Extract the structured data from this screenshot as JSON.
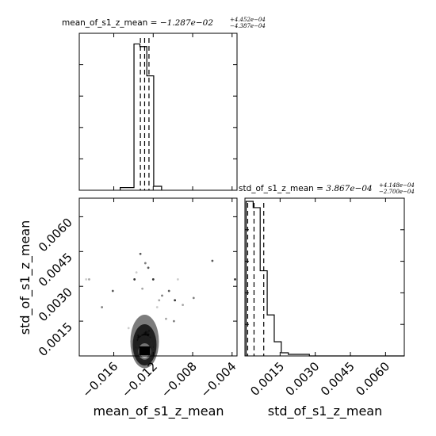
{
  "chart_data": [
    {
      "type": "histogram",
      "panel": "top-left",
      "parameter": "mean_of_s1_z_mean",
      "title_text": "mean_of_s1_z_mean = ",
      "title_value": "−1.287e−02",
      "title_plus": "+4.452e−04",
      "title_minus": "−4.387e−04",
      "xlim": [
        -0.0195,
        -0.0035
      ],
      "bins": [
        {
          "lo": -0.01535,
          "hi": -0.01395,
          "count": 2
        },
        {
          "lo": -0.01395,
          "hi": -0.01335,
          "count": 110
        },
        {
          "lo": -0.01335,
          "hi": -0.01265,
          "count": 108
        },
        {
          "lo": -0.01265,
          "hi": -0.01195,
          "count": 86
        },
        {
          "lo": -0.01195,
          "hi": -0.01115,
          "count": 3
        }
      ],
      "ymax": 118,
      "quantiles": [
        -0.0133,
        -0.01287,
        -0.01243
      ]
    },
    {
      "type": "scatter",
      "panel": "bottom-left",
      "xlabel": "mean_of_s1_z_mean",
      "ylabel": "std_of_s1_z_mean",
      "xlim": [
        -0.0195,
        -0.0035
      ],
      "ylim": [
        0.0,
        0.0068
      ],
      "xticks": [
        -0.016,
        -0.012,
        -0.008,
        -0.004
      ],
      "xtick_labels": [
        "−0.016",
        "−0.012",
        "−0.008",
        "−0.004"
      ],
      "yticks": [
        0.0015,
        0.003,
        0.0045,
        0.006
      ],
      "ytick_labels": [
        "0.0015",
        "0.0030",
        "0.0045",
        "0.0060"
      ],
      "outliers": [
        {
          "x": -0.0188,
          "y": 0.0033
        },
        {
          "x": -0.0185,
          "y": 0.0033
        },
        {
          "x": -0.0172,
          "y": 0.0021
        },
        {
          "x": -0.0161,
          "y": 0.0028
        },
        {
          "x": -0.0139,
          "y": 0.0033
        },
        {
          "x": -0.0137,
          "y": 0.0036
        },
        {
          "x": -0.0131,
          "y": 0.0029
        },
        {
          "x": -0.0128,
          "y": 0.004
        },
        {
          "x": -0.0125,
          "y": 0.0038
        },
        {
          "x": -0.012,
          "y": 0.0033
        },
        {
          "x": -0.0116,
          "y": 0.0021
        },
        {
          "x": -0.0114,
          "y": 0.0024
        },
        {
          "x": -0.0111,
          "y": 0.0026
        },
        {
          "x": -0.0104,
          "y": 0.0028
        },
        {
          "x": -0.0098,
          "y": 0.0024
        },
        {
          "x": -0.0095,
          "y": 0.0033
        },
        {
          "x": -0.009,
          "y": 0.0022
        },
        {
          "x": -0.0079,
          "y": 0.0025
        },
        {
          "x": -0.006,
          "y": 0.0041
        },
        {
          "x": -0.0037,
          "y": 0.0033
        },
        {
          "x": -0.0145,
          "y": 0.0012
        },
        {
          "x": -0.0107,
          "y": 0.0016
        },
        {
          "x": -0.0099,
          "y": 0.0015
        },
        {
          "x": -0.0133,
          "y": 0.0044
        }
      ],
      "core": {
        "x_center": -0.01287,
        "x_sigma": 0.00045,
        "y_center": 0.00039,
        "y_sigma": 0.0003
      }
    },
    {
      "type": "histogram",
      "panel": "bottom-right",
      "parameter": "std_of_s1_z_mean",
      "xlabel": "std_of_s1_z_mean",
      "title_text": "std_of_s1_z_mean = ",
      "title_value": "3.867e−04",
      "title_plus": "+4.148e−04",
      "title_minus": "−2.700e−04",
      "xlim": [
        0.0,
        0.0068
      ],
      "xticks": [
        0.0015,
        0.003,
        0.0045,
        0.006
      ],
      "xtick_labels": [
        "0.0015",
        "0.0030",
        "0.0045",
        "0.0060"
      ],
      "bins": [
        {
          "lo": 5e-05,
          "hi": 0.00035,
          "count": 98
        },
        {
          "lo": 0.00035,
          "hi": 0.00065,
          "count": 94
        },
        {
          "lo": 0.00065,
          "hi": 0.00095,
          "count": 54
        },
        {
          "lo": 0.00095,
          "hi": 0.00125,
          "count": 26
        },
        {
          "lo": 0.00125,
          "hi": 0.00155,
          "count": 9
        },
        {
          "lo": 0.00155,
          "hi": 0.00185,
          "count": 2
        },
        {
          "lo": 0.00185,
          "hi": 0.00215,
          "count": 1
        },
        {
          "lo": 0.00215,
          "hi": 0.00245,
          "count": 1
        },
        {
          "lo": 0.00245,
          "hi": 0.00275,
          "count": 1
        },
        {
          "lo": 0.00275,
          "hi": 0.0068,
          "count": 0
        }
      ],
      "ymax": 100,
      "quantiles": [
        0.000117,
        0.000387,
        0.000802
      ]
    }
  ]
}
